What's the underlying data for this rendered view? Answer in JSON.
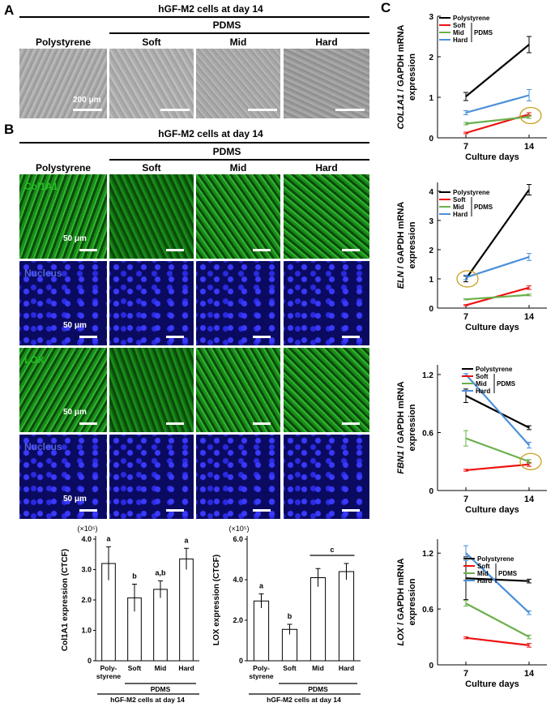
{
  "panel_labels": {
    "a": "A",
    "b": "B",
    "c": "C"
  },
  "panelA": {
    "title": "hGF-M2 cells at day 14",
    "pdms": "PDMS",
    "columns": [
      "Polystyrene",
      "Soft",
      "Mid",
      "Hard"
    ],
    "scale": "200 μm"
  },
  "panelB": {
    "title": "hGF-M2 cells at day 14",
    "pdms": "PDMS",
    "columns": [
      "Polystyrene",
      "Soft",
      "Mid",
      "Hard"
    ],
    "rows": [
      {
        "label": "Col1A1",
        "color": "#22c022"
      },
      {
        "label": "Nucleus",
        "color": "#5060e0"
      },
      {
        "label": "LOX",
        "color": "#22c022"
      },
      {
        "label": "Nucleus",
        "color": "#5060e0"
      }
    ],
    "scale": "50 μm"
  },
  "colors": {
    "polystyrene": "#000000",
    "soft": "#ee1111",
    "mid": "#6ab04a",
    "hard": "#4a90d9",
    "highlight": "#c8a020",
    "green_stain": "#1a8a1a",
    "blue_stain": "#0a0a60"
  },
  "bar_charts": [
    {
      "type": "bar",
      "multiplier": "(×10⁵)",
      "ylabel": "Col1A1 expression (CTCF)",
      "categories": [
        "Poly-\nstyrene",
        "Soft",
        "Mid",
        "Hard"
      ],
      "values": [
        3.2,
        2.07,
        2.35,
        3.35
      ],
      "errors": [
        0.55,
        0.45,
        0.28,
        0.35
      ],
      "letters": [
        "a",
        "b",
        "a,b",
        "a"
      ],
      "yticks": [
        "0",
        "1.0",
        "2.0",
        "3.0",
        "4.0"
      ],
      "ylim": [
        0,
        4.0
      ],
      "group_label": "PDMS",
      "xlabel": "hGF-M2 cells at day 14"
    },
    {
      "type": "bar",
      "multiplier": "(×10⁵)",
      "ylabel": "LOX expression (CTCF)",
      "categories": [
        "Poly-\nstyrene",
        "Soft",
        "Mid",
        "Hard"
      ],
      "values": [
        2.95,
        1.55,
        4.1,
        4.4
      ],
      "errors": [
        0.35,
        0.25,
        0.45,
        0.4
      ],
      "letters": [
        "a",
        "b",
        "",
        ""
      ],
      "bracket_letter": "c",
      "yticks": [
        "0",
        "2.0",
        "4.0",
        "6.0"
      ],
      "ylim": [
        0,
        6.0
      ],
      "group_label": "PDMS",
      "xlabel": "hGF-M2 cells at day 14"
    }
  ],
  "chart_data": [
    {
      "type": "line",
      "ylabel_gene": "COL1A1",
      "ylabel_rest": " / GAPDH mRNA",
      "ylabel2": "expression",
      "xlabel": "Culture days",
      "x": [
        "7",
        "14"
      ],
      "yticks": [
        "0",
        "1",
        "2",
        "3"
      ],
      "ylim": [
        0,
        3
      ],
      "series": [
        {
          "name": "Polystyrene",
          "values": [
            1.02,
            2.3
          ],
          "err": [
            0.1,
            0.2
          ]
        },
        {
          "name": "Soft",
          "values": [
            0.12,
            0.58
          ],
          "err": [
            0.02,
            0.04
          ]
        },
        {
          "name": "Mid",
          "values": [
            0.35,
            0.52
          ],
          "err": [
            0.03,
            0.04
          ]
        },
        {
          "name": "Hard",
          "values": [
            0.62,
            1.05
          ],
          "err": [
            0.05,
            0.14
          ]
        }
      ],
      "legend_group": "PDMS",
      "highlight": {
        "x": "14",
        "y": 0.55
      }
    },
    {
      "type": "line",
      "ylabel_gene": "ELN",
      "ylabel_rest": " / GAPDH mRNA",
      "ylabel2": "expression",
      "xlabel": "Culture days",
      "x": [
        "7",
        "14"
      ],
      "yticks": [
        "0",
        "1",
        "2",
        "3",
        "4"
      ],
      "ylim": [
        0,
        4.3
      ],
      "series": [
        {
          "name": "Polystyrene",
          "values": [
            1.0,
            4.05
          ],
          "err": [
            0.1,
            0.18
          ]
        },
        {
          "name": "Soft",
          "values": [
            0.1,
            0.7
          ],
          "err": [
            0.02,
            0.06
          ]
        },
        {
          "name": "Mid",
          "values": [
            0.3,
            0.45
          ],
          "err": [
            0.02,
            0.03
          ]
        },
        {
          "name": "Hard",
          "values": [
            1.05,
            1.75
          ],
          "err": [
            0.08,
            0.12
          ]
        }
      ],
      "legend_group": "PDMS",
      "highlight": {
        "x": "7",
        "y": 1.0
      }
    },
    {
      "type": "line",
      "ylabel_gene": "FBN1",
      "ylabel_rest": " / GAPDH mRNA",
      "ylabel2": "expression",
      "xlabel": "Culture days",
      "x": [
        "7",
        "14"
      ],
      "yticks": [
        "0",
        "0.6",
        "1.2"
      ],
      "ylim": [
        0,
        1.3
      ],
      "series": [
        {
          "name": "Polystyrene",
          "values": [
            0.98,
            0.65
          ],
          "err": [
            0.07,
            0.02
          ]
        },
        {
          "name": "Soft",
          "values": [
            0.21,
            0.27
          ],
          "err": [
            0.01,
            0.02
          ]
        },
        {
          "name": "Mid",
          "values": [
            0.54,
            0.3
          ],
          "err": [
            0.08,
            0.02
          ]
        },
        {
          "name": "Hard",
          "values": [
            1.2,
            0.47
          ],
          "err": [
            0.01,
            0.03
          ]
        }
      ],
      "legend_group": "PDMS",
      "highlight": {
        "x": "14",
        "y": 0.3
      }
    },
    {
      "type": "line",
      "ylabel_gene": "LOX",
      "ylabel_rest": " / GAPDH mRNA",
      "ylabel2": "expression",
      "xlabel": "Culture days",
      "x": [
        "7",
        "14"
      ],
      "yticks": [
        "0",
        "0.6",
        "1.2"
      ],
      "ylim": [
        0,
        1.35
      ],
      "series": [
        {
          "name": "Polystyrene",
          "values": [
            0.93,
            0.9
          ],
          "err": [
            0.23,
            0.02
          ]
        },
        {
          "name": "Soft",
          "values": [
            0.29,
            0.21
          ],
          "err": [
            0.01,
            0.02
          ]
        },
        {
          "name": "Mid",
          "values": [
            0.66,
            0.3
          ],
          "err": [
            0.03,
            0.02
          ]
        },
        {
          "name": "Hard",
          "values": [
            1.2,
            0.56
          ],
          "err": [
            0.08,
            0.02
          ]
        }
      ],
      "legend_group": "PDMS"
    }
  ]
}
